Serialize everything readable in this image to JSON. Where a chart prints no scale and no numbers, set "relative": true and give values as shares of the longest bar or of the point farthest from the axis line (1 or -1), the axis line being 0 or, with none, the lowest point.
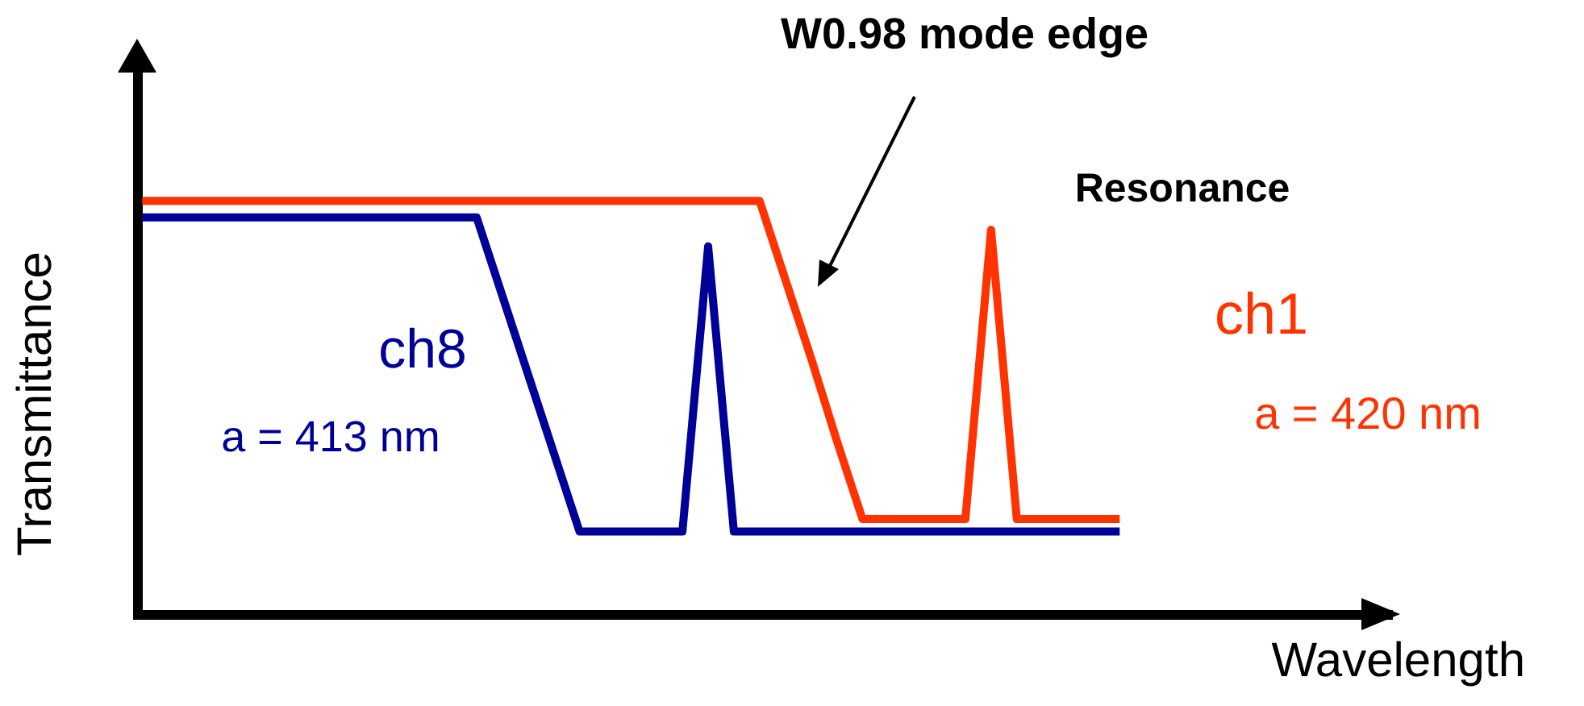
{
  "chart_data": {
    "type": "line",
    "relative": true,
    "xlabel": "Wavelength",
    "ylabel": "Transmittance",
    "categories": [
      null,
      null,
      null,
      null,
      null,
      null,
      null,
      null,
      null,
      null,
      null,
      null,
      null,
      null,
      null,
      null,
      null,
      null,
      null,
      null,
      null,
      null,
      null,
      null,
      null,
      null,
      null,
      null,
      null,
      null,
      null,
      null,
      null,
      null,
      null,
      null,
      null,
      null,
      null
    ],
    "series": [
      {
        "name": "ch8",
        "color": "#000099",
        "values": [
          0.96,
          0.96,
          0.96,
          0.96,
          0.96,
          0.96,
          0.96,
          0.96,
          0.96,
          0.96,
          0.96,
          0.96,
          0.96,
          0.96,
          0.77,
          0.58,
          0.39,
          0.2,
          0.2,
          0.2,
          0.2,
          0.2,
          0.89,
          0.2,
          0.2,
          0.2,
          0.2,
          0.2,
          0.2,
          0.2,
          0.2,
          0.2,
          0.2,
          0.2,
          0.2,
          0.2,
          0.2,
          0.2,
          0.2
        ]
      },
      {
        "name": "ch1",
        "color": "#ff3300",
        "values": [
          1,
          1,
          1,
          1,
          1,
          1,
          1,
          1,
          1,
          1,
          1,
          1,
          1,
          1,
          1,
          1,
          1,
          1,
          1,
          1,
          1,
          1,
          1,
          1,
          1,
          0.81,
          0.62,
          0.42,
          0.23,
          0.23,
          0.23,
          0.23,
          0.23,
          0.93,
          0.23,
          0.23,
          0.23,
          0.23,
          0.23
        ]
      }
    ],
    "annotations": [
      "W0.98 mode edge",
      "Resonance",
      "a = 413 nm",
      "a = 420 nm"
    ],
    "grid": false,
    "legend": false,
    "marker": "none",
    "line_style": "solid"
  }
}
